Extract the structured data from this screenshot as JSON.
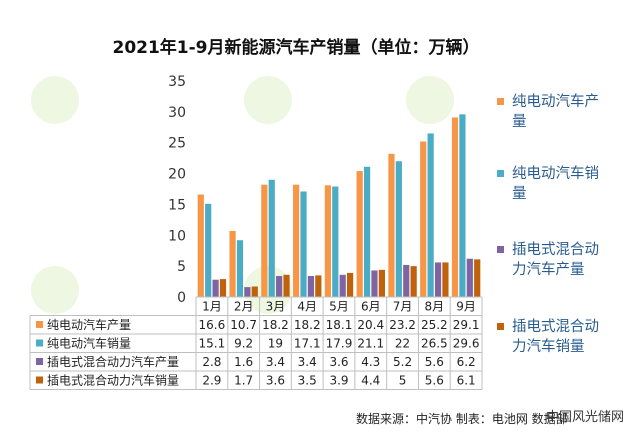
{
  "chart_data": {
    "type": "bar",
    "title": "2021年1-9月新能源汽车产销量（单位：万辆）",
    "categories": [
      "1月",
      "2月",
      "3月",
      "4月",
      "5月",
      "6月",
      "7月",
      "8月",
      "9月"
    ],
    "series": [
      {
        "name": "纯电动汽车产量",
        "values": [
          16.6,
          10.7,
          18.2,
          18.2,
          18.1,
          20.4,
          23.2,
          25.2,
          29.1
        ]
      },
      {
        "name": "纯电动汽车销量",
        "values": [
          15.1,
          9.2,
          19,
          17.1,
          17.9,
          21.1,
          22,
          26.5,
          29.6
        ]
      },
      {
        "name": "插电式混合动力汽车产量",
        "values": [
          2.8,
          1.6,
          3.4,
          3.4,
          3.6,
          4.3,
          5.2,
          5.6,
          6.2
        ]
      },
      {
        "name": "插电式混合动力汽车销量",
        "values": [
          2.9,
          1.7,
          3.6,
          3.5,
          3.9,
          4.4,
          5,
          5.6,
          6.1
        ]
      }
    ],
    "ylim": [
      0,
      35
    ],
    "yticks": [
      0,
      5,
      10,
      15,
      20,
      25,
      30,
      35
    ],
    "grid": false,
    "legend": "right",
    "data_table": true
  },
  "colors": {
    "series": [
      "#f79646",
      "#4bacc6",
      "#8064a2",
      "#c0620c"
    ]
  },
  "footer": {
    "source": "数据来源：中汽协 制表：电池网 数据部",
    "watermark": "中国风光储网"
  }
}
